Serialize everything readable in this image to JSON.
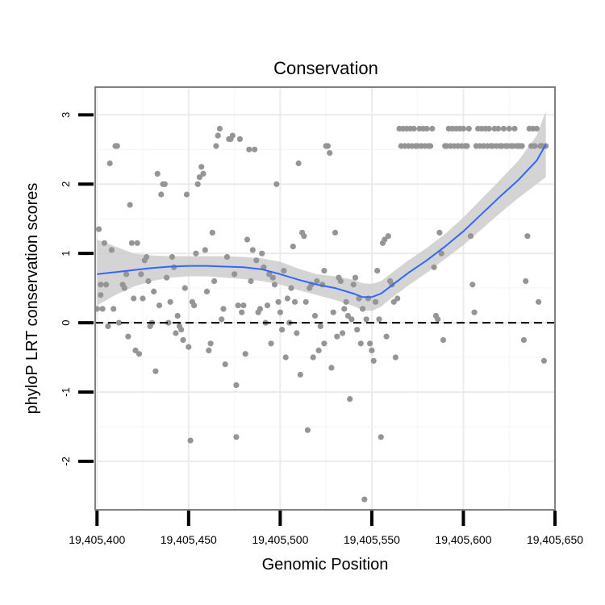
{
  "chart_data": {
    "type": "scatter",
    "title": "Conservation",
    "xlabel": "Genomic Position",
    "ylabel": "phyloP LRT conservation scores",
    "xlim": [
      19405399,
      19405650
    ],
    "ylim": [
      -2.7,
      3.4
    ],
    "x_ticks": [
      19405400,
      19405450,
      19405500,
      19405550,
      19405600,
      19405650
    ],
    "x_tick_labels": [
      "19,405,400",
      "19,405,450",
      "19,405,500",
      "19,405,550",
      "19,405,600",
      "19,405,650"
    ],
    "y_ticks": [
      -2,
      -1,
      0,
      1,
      2,
      3
    ],
    "y_tick_labels": [
      "-2",
      "-1",
      "0",
      "1",
      "2",
      "3"
    ],
    "grid": true,
    "reference_line": {
      "y": 0,
      "style": "dashed"
    },
    "colors": {
      "points": "#959595",
      "smooth_line": "#3366ff",
      "ribbon": "#cccccc",
      "grid": "#ebebeb",
      "panel_border": "#808080",
      "reference": "#000000"
    },
    "points": [
      [
        19405400,
        0.2
      ],
      [
        19405401,
        1.35
      ],
      [
        19405402,
        0.55
      ],
      [
        19405402,
        0.4
      ],
      [
        19405403,
        0.2
      ],
      [
        19405404,
        1.15
      ],
      [
        19405405,
        0.55
      ],
      [
        19405406,
        -0.05
      ],
      [
        19405407,
        2.3
      ],
      [
        19405408,
        1.05
      ],
      [
        19405409,
        0.2
      ],
      [
        19405410,
        2.55
      ],
      [
        19405411,
        2.55
      ],
      [
        19405412,
        0.0
      ],
      [
        19405414,
        0.55
      ],
      [
        19405415,
        0.5
      ],
      [
        19405416,
        0.7
      ],
      [
        19405417,
        -0.2
      ],
      [
        19405418,
        1.7
      ],
      [
        19405419,
        1.15
      ],
      [
        19405420,
        0.35
      ],
      [
        19405421,
        -0.4
      ],
      [
        19405422,
        1.15
      ],
      [
        19405423,
        -0.45
      ],
      [
        19405424,
        0.7
      ],
      [
        19405425,
        0.35
      ],
      [
        19405426,
        0.9
      ],
      [
        19405427,
        0.95
      ],
      [
        19405428,
        0.6
      ],
      [
        19405429,
        -0.05
      ],
      [
        19405430,
        0.0
      ],
      [
        19405431,
        0.45
      ],
      [
        19405432,
        -0.7
      ],
      [
        19405433,
        2.15
      ],
      [
        19405434,
        0.25
      ],
      [
        19405435,
        1.85
      ],
      [
        19405436,
        2.0
      ],
      [
        19405437,
        2.0
      ],
      [
        19405438,
        0.65
      ],
      [
        19405439,
        0.0
      ],
      [
        19405440,
        0.3
      ],
      [
        19405441,
        0.95
      ],
      [
        19405442,
        0.8
      ],
      [
        19405443,
        -0.15
      ],
      [
        19405444,
        0.1
      ],
      [
        19405445,
        -0.05
      ],
      [
        19405446,
        -0.1
      ],
      [
        19405447,
        -0.25
      ],
      [
        19405448,
        0.5
      ],
      [
        19405449,
        1.85
      ],
      [
        19405450,
        -0.35
      ],
      [
        19405451,
        -1.7
      ],
      [
        19405452,
        0.3
      ],
      [
        19405453,
        0.25
      ],
      [
        19405454,
        1.0
      ],
      [
        19405455,
        2.0
      ],
      [
        19405456,
        2.1
      ],
      [
        19405457,
        2.25
      ],
      [
        19405458,
        2.15
      ],
      [
        19405459,
        1.05
      ],
      [
        19405460,
        0.45
      ],
      [
        19405461,
        -0.4
      ],
      [
        19405462,
        -0.3
      ],
      [
        19405463,
        1.3
      ],
      [
        19405464,
        0.6
      ],
      [
        19405465,
        2.55
      ],
      [
        19405466,
        2.7
      ],
      [
        19405467,
        2.8
      ],
      [
        19405468,
        0.05
      ],
      [
        19405469,
        0.2
      ],
      [
        19405470,
        -0.6
      ],
      [
        19405471,
        0.95
      ],
      [
        19405472,
        2.65
      ],
      [
        19405473,
        2.65
      ],
      [
        19405474,
        2.7
      ],
      [
        19405475,
        0.7
      ],
      [
        19405476,
        -0.9
      ],
      [
        19405476,
        -1.65
      ],
      [
        19405477,
        0.25
      ],
      [
        19405478,
        2.65
      ],
      [
        19405479,
        0.15
      ],
      [
        19405480,
        0.25
      ],
      [
        19405481,
        -0.45
      ],
      [
        19405482,
        1.2
      ],
      [
        19405483,
        2.5
      ],
      [
        19405484,
        0.6
      ],
      [
        19405485,
        1.05
      ],
      [
        19405486,
        2.5
      ],
      [
        19405487,
        0.9
      ],
      [
        19405488,
        0.15
      ],
      [
        19405489,
        0.2
      ],
      [
        19405490,
        1.0
      ],
      [
        19405491,
        0.8
      ],
      [
        19405492,
        0.0
      ],
      [
        19405493,
        0.25
      ],
      [
        19405494,
        0.7
      ],
      [
        19405495,
        -0.3
      ],
      [
        19405496,
        0.65
      ],
      [
        19405497,
        0.55
      ],
      [
        19405498,
        2.0
      ],
      [
        19405499,
        0.3
      ],
      [
        19405500,
        0.15
      ],
      [
        19405501,
        -0.1
      ],
      [
        19405502,
        0.75
      ],
      [
        19405503,
        -0.5
      ],
      [
        19405504,
        0.35
      ],
      [
        19405505,
        0.0
      ],
      [
        19405506,
        0.5
      ],
      [
        19405507,
        1.1
      ],
      [
        19405508,
        0.3
      ],
      [
        19405509,
        -0.15
      ],
      [
        19405510,
        2.3
      ],
      [
        19405511,
        -0.75
      ],
      [
        19405512,
        1.3
      ],
      [
        19405513,
        1.25
      ],
      [
        19405514,
        0.3
      ],
      [
        19405515,
        -1.55
      ],
      [
        19405516,
        0.5
      ],
      [
        19405517,
        0.55
      ],
      [
        19405518,
        -0.5
      ],
      [
        19405519,
        0.1
      ],
      [
        19405520,
        0.6
      ],
      [
        19405521,
        -0.4
      ],
      [
        19405522,
        -0.05
      ],
      [
        19405523,
        0.55
      ],
      [
        19405524,
        0.75
      ],
      [
        19405524,
        -0.3
      ],
      [
        19405525,
        2.55
      ],
      [
        19405526,
        2.55
      ],
      [
        19405527,
        2.45
      ],
      [
        19405528,
        -0.65
      ],
      [
        19405529,
        0.15
      ],
      [
        19405530,
        1.3
      ],
      [
        19405531,
        -0.2
      ],
      [
        19405532,
        0.65
      ],
      [
        19405533,
        0.6
      ],
      [
        19405534,
        -0.15
      ],
      [
        19405535,
        0.2
      ],
      [
        19405536,
        0.3
      ],
      [
        19405537,
        0.1
      ],
      [
        19405538,
        -1.1
      ],
      [
        19405539,
        0.05
      ],
      [
        19405540,
        0.55
      ],
      [
        19405541,
        0.65
      ],
      [
        19405542,
        -0.1
      ],
      [
        19405543,
        0.35
      ],
      [
        19405544,
        -0.3
      ],
      [
        19405545,
        0.2
      ],
      [
        19405546,
        -2.55
      ],
      [
        19405547,
        0.05
      ],
      [
        19405548,
        0.35
      ],
      [
        19405549,
        -0.3
      ],
      [
        19405550,
        -0.4
      ],
      [
        19405551,
        -0.55
      ],
      [
        19405552,
        0.3
      ],
      [
        19405553,
        0.75
      ],
      [
        19405554,
        0.05
      ],
      [
        19405555,
        -1.65
      ],
      [
        19405556,
        1.15
      ],
      [
        19405557,
        1.2
      ],
      [
        19405558,
        -0.2
      ],
      [
        19405559,
        1.25
      ],
      [
        19405560,
        0.6
      ],
      [
        19405561,
        0.55
      ],
      [
        19405562,
        0.3
      ],
      [
        19405563,
        -0.5
      ],
      [
        19405564,
        0.35
      ],
      [
        19405565,
        2.8
      ],
      [
        19405566,
        2.55
      ],
      [
        19405567,
        2.8
      ],
      [
        19405568,
        2.55
      ],
      [
        19405569,
        2.8
      ],
      [
        19405570,
        2.55
      ],
      [
        19405571,
        2.8
      ],
      [
        19405572,
        2.55
      ],
      [
        19405573,
        2.8
      ],
      [
        19405574,
        2.55
      ],
      [
        19405575,
        2.55
      ],
      [
        19405576,
        2.8
      ],
      [
        19405577,
        2.55
      ],
      [
        19405578,
        2.8
      ],
      [
        19405579,
        2.55
      ],
      [
        19405580,
        2.8
      ],
      [
        19405581,
        2.55
      ],
      [
        19405582,
        2.55
      ],
      [
        19405583,
        2.8
      ],
      [
        19405584,
        0.8
      ],
      [
        19405585,
        0.1
      ],
      [
        19405586,
        0.05
      ],
      [
        19405587,
        1.3
      ],
      [
        19405588,
        1.0
      ],
      [
        19405589,
        -0.25
      ],
      [
        19405590,
        2.55
      ],
      [
        19405591,
        2.55
      ],
      [
        19405592,
        2.8
      ],
      [
        19405593,
        2.55
      ],
      [
        19405594,
        2.8
      ],
      [
        19405595,
        2.55
      ],
      [
        19405596,
        2.8
      ],
      [
        19405597,
        2.55
      ],
      [
        19405598,
        2.8
      ],
      [
        19405599,
        2.55
      ],
      [
        19405600,
        2.8
      ],
      [
        19405601,
        2.55
      ],
      [
        19405602,
        2.55
      ],
      [
        19405603,
        2.8
      ],
      [
        19405604,
        1.25
      ],
      [
        19405605,
        0.55
      ],
      [
        19405606,
        0.15
      ],
      [
        19405607,
        2.55
      ],
      [
        19405608,
        2.8
      ],
      [
        19405609,
        2.55
      ],
      [
        19405610,
        2.8
      ],
      [
        19405611,
        2.55
      ],
      [
        19405612,
        2.8
      ],
      [
        19405613,
        2.55
      ],
      [
        19405614,
        2.8
      ],
      [
        19405615,
        2.55
      ],
      [
        19405616,
        2.55
      ],
      [
        19405617,
        2.8
      ],
      [
        19405618,
        2.55
      ],
      [
        19405619,
        2.8
      ],
      [
        19405620,
        2.55
      ],
      [
        19405621,
        2.55
      ],
      [
        19405622,
        2.8
      ],
      [
        19405623,
        2.55
      ],
      [
        19405624,
        2.55
      ],
      [
        19405625,
        2.8
      ],
      [
        19405626,
        2.55
      ],
      [
        19405627,
        2.55
      ],
      [
        19405628,
        2.8
      ],
      [
        19405629,
        2.55
      ],
      [
        19405630,
        2.55
      ],
      [
        19405631,
        2.55
      ],
      [
        19405632,
        2.55
      ],
      [
        19405633,
        -0.25
      ],
      [
        19405634,
        0.6
      ],
      [
        19405635,
        1.25
      ],
      [
        19405636,
        2.8
      ],
      [
        19405637,
        2.55
      ],
      [
        19405638,
        2.8
      ],
      [
        19405639,
        2.55
      ],
      [
        19405640,
        2.8
      ],
      [
        19405641,
        0.3
      ],
      [
        19405642,
        2.55
      ],
      [
        19405643,
        2.55
      ],
      [
        19405644,
        -0.55
      ],
      [
        19405645,
        2.55
      ]
    ],
    "smooth": {
      "x": [
        19405400,
        19405410,
        19405420,
        19405430,
        19405440,
        19405450,
        19405460,
        19405470,
        19405480,
        19405490,
        19405500,
        19405510,
        19405520,
        19405530,
        19405540,
        19405545,
        19405550,
        19405555,
        19405560,
        19405570,
        19405580,
        19405590,
        19405600,
        19405610,
        19405620,
        19405630,
        19405640,
        19405645
      ],
      "y": [
        0.7,
        0.73,
        0.76,
        0.79,
        0.81,
        0.82,
        0.82,
        0.81,
        0.8,
        0.77,
        0.7,
        0.62,
        0.55,
        0.5,
        0.42,
        0.37,
        0.37,
        0.42,
        0.52,
        0.72,
        0.9,
        1.1,
        1.32,
        1.57,
        1.82,
        2.06,
        2.34,
        2.57
      ],
      "lower": [
        0.25,
        0.4,
        0.52,
        0.6,
        0.65,
        0.67,
        0.67,
        0.65,
        0.63,
        0.6,
        0.55,
        0.47,
        0.4,
        0.33,
        0.24,
        0.18,
        0.17,
        0.23,
        0.34,
        0.54,
        0.72,
        0.92,
        1.12,
        1.35,
        1.58,
        1.8,
        2.0,
        2.1
      ],
      "upper": [
        1.2,
        1.1,
        1.0,
        0.97,
        0.96,
        0.96,
        0.96,
        0.96,
        0.95,
        0.93,
        0.88,
        0.78,
        0.7,
        0.67,
        0.62,
        0.57,
        0.56,
        0.6,
        0.7,
        0.9,
        1.08,
        1.28,
        1.52,
        1.79,
        2.06,
        2.34,
        2.7,
        3.05
      ]
    }
  }
}
